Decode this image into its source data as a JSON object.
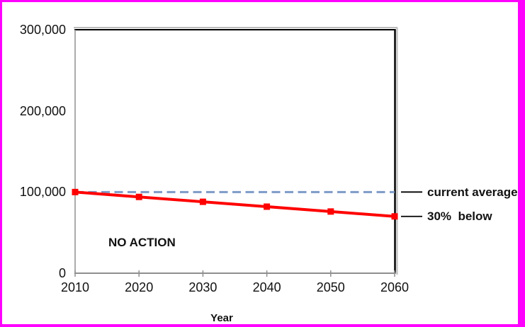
{
  "window": {
    "background": "#FFFFFF",
    "frame_color": "#FF00FF"
  },
  "chart_data": {
    "type": "line",
    "title": "",
    "xlabel": "Year",
    "ylabel": "",
    "x": [
      2010,
      2020,
      2030,
      2040,
      2050,
      2060
    ],
    "xtick_labels": [
      "2010",
      "2020",
      "2030",
      "2040",
      "2050",
      "2060"
    ],
    "xlim": [
      2010,
      2060
    ],
    "ylim": [
      0,
      300000
    ],
    "yticks": [
      0,
      100000,
      200000,
      300000
    ],
    "ytick_labels": [
      "0",
      "100,000",
      "200,000",
      "300,000"
    ],
    "grid": false,
    "legend_position": "right-leader-labels",
    "series": [
      {
        "name": "current average",
        "style": "dashed",
        "color": "#7D9AC7",
        "values": [
          100000,
          100000,
          100000,
          100000,
          100000,
          100000
        ]
      },
      {
        "name": "30% below",
        "style": "solid-squares",
        "color": "#FF0000",
        "values": [
          100000,
          94000,
          88000,
          82000,
          76000,
          70000
        ]
      }
    ],
    "annotations": [
      {
        "text": "NO ACTION"
      },
      {
        "text": "current average",
        "value": 100000
      },
      {
        "text": "30%  below",
        "value": 70000
      }
    ],
    "colors": {
      "axis_gray": "#8F8F8F",
      "frame_dark": "#000000",
      "frame_shadow": "#BBBBBB",
      "leader": "#000000",
      "text": "#111111"
    }
  }
}
